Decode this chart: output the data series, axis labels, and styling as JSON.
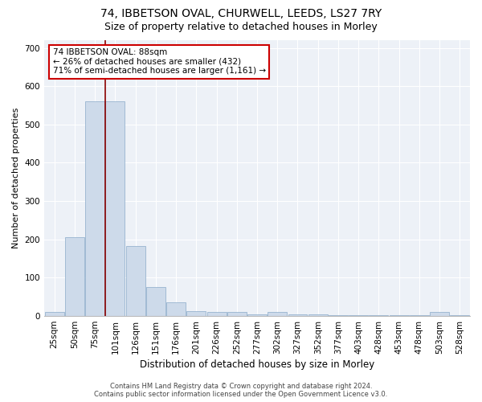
{
  "title": "74, IBBETSON OVAL, CHURWELL, LEEDS, LS27 7RY",
  "subtitle": "Size of property relative to detached houses in Morley",
  "xlabel": "Distribution of detached houses by size in Morley",
  "ylabel": "Number of detached properties",
  "footer_line1": "Contains HM Land Registry data © Crown copyright and database right 2024.",
  "footer_line2": "Contains public sector information licensed under the Open Government Licence v3.0.",
  "annotation_line1": "74 IBBETSON OVAL: 88sqm",
  "annotation_line2": "← 26% of detached houses are smaller (432)",
  "annotation_line3": "71% of semi-detached houses are larger (1,161) →",
  "bar_labels": [
    "25sqm",
    "50sqm",
    "75sqm",
    "101sqm",
    "126sqm",
    "151sqm",
    "176sqm",
    "201sqm",
    "226sqm",
    "252sqm",
    "277sqm",
    "302sqm",
    "327sqm",
    "352sqm",
    "377sqm",
    "403sqm",
    "428sqm",
    "453sqm",
    "478sqm",
    "503sqm",
    "528sqm"
  ],
  "bar_values": [
    10,
    205,
    560,
    560,
    182,
    75,
    35,
    12,
    10,
    10,
    5,
    10,
    5,
    5,
    2,
    2,
    2,
    2,
    2,
    10,
    2
  ],
  "bar_color": "#cddaea",
  "bar_edge_color": "#8aaac8",
  "vline_color": "#8b0000",
  "annotation_box_color": "#cc0000",
  "ylim": [
    0,
    720
  ],
  "yticks": [
    0,
    100,
    200,
    300,
    400,
    500,
    600,
    700
  ],
  "bg_color": "#edf1f7",
  "title_fontsize": 10,
  "subtitle_fontsize": 9,
  "xlabel_fontsize": 8.5,
  "ylabel_fontsize": 8,
  "tick_fontsize": 7.5,
  "annotation_fontsize": 7.5,
  "footer_fontsize": 6
}
